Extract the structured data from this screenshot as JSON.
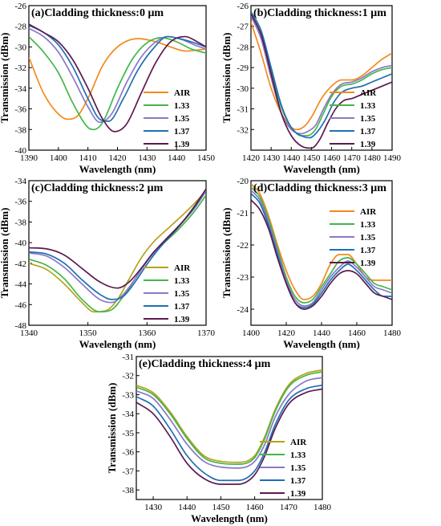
{
  "figure": {
    "x_axis_label": "Wavelength (nm)",
    "y_axis_label": "Transmission (dBm)"
  },
  "chart_data": [
    {
      "type": "line",
      "title": "(a)Cladding thickness:0 μm",
      "xlabel": "Wavelength (nm)",
      "ylabel": "Transmission (dBm)",
      "xlim": [
        1390,
        1450
      ],
      "ylim": [
        -40,
        -26
      ],
      "xticks": [
        1390,
        1400,
        1410,
        1420,
        1430,
        1440,
        1450
      ],
      "yticks": [
        -40,
        -38,
        -36,
        -34,
        -32,
        -30,
        -28,
        -26
      ],
      "legend_position": "bottom-right",
      "series": [
        {
          "name": "AIR",
          "color": "#f28a1c",
          "x": [
            1390,
            1395,
            1400,
            1403,
            1406,
            1410,
            1415,
            1420,
            1427,
            1433,
            1438,
            1443,
            1450
          ],
          "y": [
            -31,
            -34.5,
            -36.5,
            -37,
            -36.8,
            -35,
            -31.8,
            -30,
            -29.2,
            -29.5,
            -30,
            -30.4,
            -30.2
          ]
        },
        {
          "name": "1.33",
          "color": "#43b649",
          "x": [
            1390,
            1395,
            1400,
            1405,
            1410,
            1412,
            1415,
            1420,
            1425,
            1430,
            1435,
            1440,
            1445,
            1450
          ],
          "y": [
            -29,
            -30.5,
            -32.5,
            -35.5,
            -37.8,
            -38,
            -37.3,
            -34,
            -31.2,
            -29.6,
            -29.1,
            -29.5,
            -30.2,
            -30.6
          ]
        },
        {
          "name": "1.35",
          "color": "#8a78c6",
          "x": [
            1390,
            1395,
            1400,
            1405,
            1410,
            1414,
            1418,
            1423,
            1428,
            1433,
            1437,
            1442,
            1446,
            1450
          ],
          "y": [
            -28.2,
            -29,
            -30.5,
            -33,
            -35.8,
            -37.3,
            -36.5,
            -33.5,
            -31,
            -29.5,
            -29,
            -29.3,
            -29.8,
            -30.2
          ]
        },
        {
          "name": "1.37",
          "color": "#1f6fb5",
          "x": [
            1390,
            1395,
            1400,
            1405,
            1410,
            1414,
            1417,
            1422,
            1427,
            1432,
            1437,
            1441,
            1446,
            1450
          ],
          "y": [
            -27.9,
            -28.6,
            -29.8,
            -32,
            -35,
            -37,
            -37.2,
            -35,
            -32.2,
            -30.2,
            -29,
            -29.2,
            -29.6,
            -30
          ]
        },
        {
          "name": "1.39",
          "color": "#5c1a4e",
          "x": [
            1390,
            1395,
            1400,
            1405,
            1410,
            1415,
            1419,
            1423,
            1428,
            1433,
            1438,
            1443,
            1447,
            1450
          ],
          "y": [
            -27.8,
            -28.6,
            -29.5,
            -31.3,
            -34,
            -37,
            -38.2,
            -37.5,
            -34.5,
            -31.5,
            -29.5,
            -29,
            -29.5,
            -30
          ]
        }
      ]
    },
    {
      "type": "line",
      "title": "(b)Cladding thickness:1 μm",
      "xlabel": "Wavelength (nm)",
      "ylabel": "Transmission (dBm)",
      "xlim": [
        1420,
        1490
      ],
      "ylim": [
        -33,
        -26
      ],
      "xticks": [
        1420,
        1430,
        1440,
        1450,
        1460,
        1470,
        1480,
        1490
      ],
      "yticks": [
        -32,
        -31,
        -30,
        -29,
        -28,
        -27,
        -26
      ],
      "legend_position": "bottom-right",
      "series": [
        {
          "name": "AIR",
          "color": "#f28a1c",
          "x": [
            1420,
            1425,
            1430,
            1435,
            1440,
            1443,
            1447,
            1450,
            1455,
            1460,
            1465,
            1470,
            1475,
            1480,
            1485,
            1490
          ],
          "y": [
            -26.8,
            -28.3,
            -30,
            -31.2,
            -31.9,
            -32,
            -31.8,
            -31.4,
            -30.5,
            -29.9,
            -29.6,
            -29.6,
            -29.4,
            -29,
            -28.6,
            -28.3
          ]
        },
        {
          "name": "1.33",
          "color": "#43b649",
          "x": [
            1420,
            1425,
            1430,
            1435,
            1440,
            1445,
            1448,
            1452,
            1456,
            1460,
            1465,
            1470,
            1475,
            1480,
            1485,
            1490
          ],
          "y": [
            -26.4,
            -27.4,
            -29.2,
            -30.9,
            -31.9,
            -32.3,
            -32.3,
            -32,
            -31.2,
            -30.4,
            -29.9,
            -29.8,
            -29.6,
            -29.3,
            -29.1,
            -29
          ]
        },
        {
          "name": "1.35",
          "color": "#8a78c6",
          "x": [
            1420,
            1425,
            1430,
            1435,
            1440,
            1445,
            1448,
            1452,
            1456,
            1460,
            1465,
            1470,
            1475,
            1480,
            1485,
            1490
          ],
          "y": [
            -26.5,
            -27.6,
            -29.5,
            -31.2,
            -32,
            -32.2,
            -32.1,
            -31.8,
            -31,
            -30.3,
            -29.8,
            -29.7,
            -29.5,
            -29.2,
            -29,
            -28.9
          ]
        },
        {
          "name": "1.37",
          "color": "#1f6fb5",
          "x": [
            1420,
            1425,
            1430,
            1435,
            1440,
            1445,
            1449,
            1453,
            1457,
            1461,
            1465,
            1470,
            1475,
            1480,
            1485,
            1490
          ],
          "y": [
            -26.3,
            -27.2,
            -29,
            -30.8,
            -31.9,
            -32.3,
            -32.4,
            -32.1,
            -31.5,
            -30.7,
            -30.2,
            -30,
            -29.9,
            -29.7,
            -29.5,
            -29.3
          ]
        },
        {
          "name": "1.39",
          "color": "#5c1a4e",
          "x": [
            1420,
            1425,
            1430,
            1435,
            1440,
            1445,
            1450,
            1454,
            1458,
            1462,
            1466,
            1470,
            1475,
            1480,
            1485,
            1490
          ],
          "y": [
            -26.4,
            -27.4,
            -29.3,
            -31.2,
            -32.3,
            -32.8,
            -32.9,
            -32.5,
            -31.7,
            -31,
            -30.6,
            -30.5,
            -30.3,
            -30.1,
            -29.9,
            -29.7
          ]
        }
      ]
    },
    {
      "type": "line",
      "title": "(c)Cladding thickness:2 μm",
      "xlabel": "Wavelength (nm)",
      "ylabel": "Transmission (dBm)",
      "xlim": [
        1340,
        1370
      ],
      "ylim": [
        -48,
        -34
      ],
      "xticks": [
        1340,
        1350,
        1360,
        1370
      ],
      "yticks": [
        -48,
        -46,
        -44,
        -42,
        -40,
        -38,
        -36,
        -34
      ],
      "legend_position": "bottom-right",
      "series": [
        {
          "name": "AIR",
          "color": "#b5a21c",
          "x": [
            1340,
            1343,
            1346,
            1349,
            1351,
            1353,
            1355,
            1357,
            1359,
            1361,
            1364,
            1367,
            1370
          ],
          "y": [
            -42,
            -42.6,
            -44,
            -45.8,
            -46.7,
            -46.6,
            -45.5,
            -43.5,
            -41.5,
            -40,
            -38.4,
            -36.8,
            -35
          ]
        },
        {
          "name": "1.33",
          "color": "#43b649",
          "x": [
            1340,
            1343,
            1346,
            1349,
            1352,
            1354,
            1356,
            1358,
            1360,
            1362,
            1365,
            1368,
            1370
          ],
          "y": [
            -41.6,
            -42.2,
            -43.5,
            -45.5,
            -46.7,
            -46.5,
            -45.2,
            -43.5,
            -41.8,
            -40.5,
            -38.9,
            -37,
            -35.4
          ]
        },
        {
          "name": "1.35",
          "color": "#8a78c6",
          "x": [
            1340,
            1343,
            1346,
            1349,
            1352,
            1354,
            1356,
            1358,
            1360,
            1362,
            1365,
            1368,
            1370
          ],
          "y": [
            -41,
            -41.3,
            -42.4,
            -44,
            -45.5,
            -45.8,
            -45,
            -43.5,
            -41.8,
            -40.4,
            -38.6,
            -36.7,
            -35
          ]
        },
        {
          "name": "1.37",
          "color": "#1f6fb5",
          "x": [
            1340,
            1343,
            1346,
            1349,
            1352,
            1354,
            1356,
            1358,
            1360,
            1362,
            1365,
            1368,
            1370
          ],
          "y": [
            -40.9,
            -41.1,
            -42,
            -43.6,
            -45,
            -45.5,
            -45.2,
            -43.8,
            -42.1,
            -40.6,
            -38.7,
            -36.6,
            -34.8
          ]
        },
        {
          "name": "1.39",
          "color": "#5c1a4e",
          "x": [
            1340,
            1343,
            1346,
            1349,
            1352,
            1355,
            1357,
            1359,
            1361,
            1363,
            1366,
            1368,
            1370
          ],
          "y": [
            -40.5,
            -40.6,
            -41.2,
            -42.5,
            -43.8,
            -44.4,
            -43.8,
            -42.5,
            -41,
            -39.8,
            -38,
            -36.5,
            -34.8
          ]
        }
      ]
    },
    {
      "type": "line",
      "title": "(d)Cladding thickness:3 μm",
      "xlabel": "Wavelength (nm)",
      "ylabel": "Transmission (dBm)",
      "xlim": [
        1400,
        1480
      ],
      "ylim": [
        -24.5,
        -20
      ],
      "xticks": [
        1400,
        1420,
        1440,
        1460,
        1480
      ],
      "yticks": [
        -24,
        -23,
        -22,
        -21,
        -20
      ],
      "legend_position": "top-right",
      "series": [
        {
          "name": "AIR",
          "color": "#f28a1c",
          "x": [
            1400,
            1405,
            1410,
            1415,
            1420,
            1425,
            1430,
            1435,
            1440,
            1445,
            1450,
            1455,
            1460,
            1465,
            1470,
            1475,
            1480
          ],
          "y": [
            -20.1,
            -20.4,
            -21.1,
            -22,
            -22.8,
            -23.4,
            -23.7,
            -23.6,
            -23.2,
            -22.6,
            -22.3,
            -22.3,
            -22.6,
            -23,
            -23.1,
            -23.1,
            -23.1
          ]
        },
        {
          "name": "1.33",
          "color": "#43b649",
          "x": [
            1400,
            1405,
            1410,
            1415,
            1420,
            1425,
            1430,
            1435,
            1440,
            1445,
            1450,
            1455,
            1460,
            1465,
            1470,
            1475,
            1480
          ],
          "y": [
            -20.2,
            -20.5,
            -21.2,
            -22.1,
            -23,
            -23.6,
            -23.8,
            -23.7,
            -23.3,
            -22.9,
            -22.5,
            -22.4,
            -22.6,
            -22.9,
            -23.2,
            -23.3,
            -23.4
          ]
        },
        {
          "name": "1.35",
          "color": "#8a78c6",
          "x": [
            1400,
            1405,
            1410,
            1415,
            1420,
            1425,
            1430,
            1435,
            1440,
            1445,
            1450,
            1455,
            1460,
            1465,
            1470,
            1475,
            1480
          ],
          "y": [
            -20.3,
            -20.6,
            -21.3,
            -22.2,
            -23.1,
            -23.7,
            -23.9,
            -23.8,
            -23.4,
            -23,
            -22.7,
            -22.5,
            -22.7,
            -23,
            -23.3,
            -23.4,
            -23.5
          ]
        },
        {
          "name": "1.37",
          "color": "#1f6fb5",
          "x": [
            1400,
            1405,
            1410,
            1415,
            1420,
            1425,
            1430,
            1435,
            1440,
            1445,
            1450,
            1455,
            1460,
            1465,
            1470,
            1475,
            1480
          ],
          "y": [
            -20.4,
            -20.7,
            -21.4,
            -22.3,
            -23.2,
            -23.8,
            -23.95,
            -23.85,
            -23.5,
            -23.1,
            -22.8,
            -22.6,
            -22.8,
            -23.1,
            -23.4,
            -23.6,
            -23.6
          ]
        },
        {
          "name": "1.39",
          "color": "#5c1a4e",
          "x": [
            1400,
            1405,
            1410,
            1415,
            1420,
            1425,
            1430,
            1435,
            1440,
            1445,
            1450,
            1455,
            1460,
            1465,
            1470,
            1475,
            1480
          ],
          "y": [
            -20.6,
            -20.9,
            -21.5,
            -22.4,
            -23.2,
            -23.8,
            -24,
            -23.9,
            -23.6,
            -23.2,
            -22.9,
            -22.8,
            -22.9,
            -23.2,
            -23.5,
            -23.6,
            -23.7
          ]
        }
      ]
    },
    {
      "type": "line",
      "title": "(e)Cladding thickness:4 μm",
      "xlabel": "Wavelength (nm)",
      "ylabel": "Transmission (dBm)",
      "xlim": [
        1425,
        1480
      ],
      "ylim": [
        -38.5,
        -31
      ],
      "xticks": [
        1430,
        1440,
        1450,
        1460,
        1470,
        1480
      ],
      "yticks": [
        -38,
        -37,
        -36,
        -35,
        -34,
        -33,
        -32,
        -31
      ],
      "legend_position": "bottom-right",
      "series": [
        {
          "name": "AIR",
          "color": "#b5a21c",
          "x": [
            1425,
            1430,
            1435,
            1440,
            1445,
            1450,
            1455,
            1460,
            1463,
            1466,
            1470,
            1475,
            1480
          ],
          "y": [
            -32.5,
            -32.9,
            -33.9,
            -35.2,
            -36.2,
            -36.5,
            -36.55,
            -36.2,
            -35.2,
            -33.8,
            -32.5,
            -31.9,
            -31.7
          ]
        },
        {
          "name": "1.33",
          "color": "#43b649",
          "x": [
            1425,
            1430,
            1435,
            1440,
            1445,
            1450,
            1455,
            1460,
            1463,
            1466,
            1470,
            1475,
            1480
          ],
          "y": [
            -32.6,
            -33,
            -34,
            -35.3,
            -36.3,
            -36.6,
            -36.65,
            -36.3,
            -35.3,
            -33.9,
            -32.6,
            -32,
            -31.8
          ]
        },
        {
          "name": "1.35",
          "color": "#8a78c6",
          "x": [
            1425,
            1430,
            1435,
            1440,
            1445,
            1450,
            1455,
            1460,
            1463,
            1466,
            1470,
            1475,
            1480
          ],
          "y": [
            -32.8,
            -33.2,
            -34.3,
            -35.6,
            -36.5,
            -36.8,
            -36.85,
            -36.5,
            -35.6,
            -34.2,
            -33,
            -32.3,
            -32.1
          ]
        },
        {
          "name": "1.37",
          "color": "#1f6fb5",
          "x": [
            1425,
            1430,
            1435,
            1440,
            1445,
            1450,
            1455,
            1460,
            1463,
            1466,
            1470,
            1475,
            1480
          ],
          "y": [
            -33.1,
            -33.6,
            -34.8,
            -36.2,
            -37.1,
            -37.5,
            -37.5,
            -37,
            -36,
            -34.6,
            -33.3,
            -32.7,
            -32.5
          ]
        },
        {
          "name": "1.39",
          "color": "#5c1a4e",
          "x": [
            1425,
            1430,
            1435,
            1440,
            1445,
            1450,
            1455,
            1460,
            1463,
            1466,
            1470,
            1475,
            1480
          ],
          "y": [
            -33.4,
            -34,
            -35.2,
            -36.6,
            -37.4,
            -37.7,
            -37.7,
            -37.2,
            -36.2,
            -34.8,
            -33.5,
            -32.9,
            -32.7
          ]
        }
      ]
    }
  ]
}
